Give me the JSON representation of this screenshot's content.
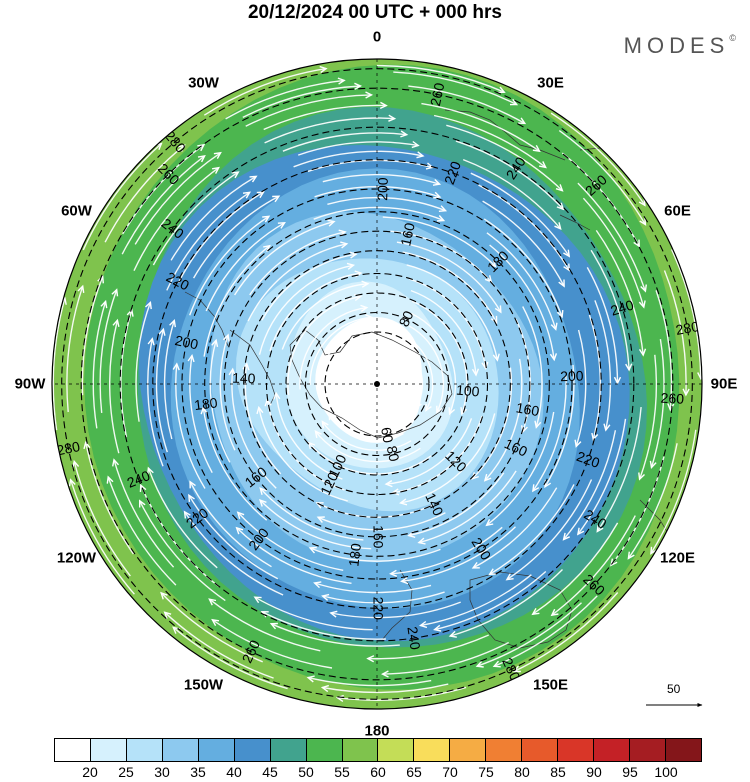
{
  "title": "20/12/2024  00 UTC  + 000 hrs",
  "logo": "MODES",
  "logo_mark": "©",
  "longitude_labels": [
    {
      "text": "0",
      "angle": 0
    },
    {
      "text": "30E",
      "angle": 30
    },
    {
      "text": "60E",
      "angle": 60
    },
    {
      "text": "90E",
      "angle": 90
    },
    {
      "text": "120E",
      "angle": 120
    },
    {
      "text": "150E",
      "angle": 150
    },
    {
      "text": "180",
      "angle": 180
    },
    {
      "text": "150W",
      "angle": 210
    },
    {
      "text": "120W",
      "angle": 240
    },
    {
      "text": "90W",
      "angle": 270
    },
    {
      "text": "60W",
      "angle": 300
    },
    {
      "text": "30W",
      "angle": 330
    }
  ],
  "contours": [
    {
      "value": "60",
      "r": 0.16,
      "label_angle": 170
    },
    {
      "value": "80",
      "r": 0.22,
      "label_angle": 25
    },
    {
      "value": "80",
      "r": 0.22,
      "label_angle": 168
    },
    {
      "value": "100",
      "r": 0.28,
      "label_angle": 95
    },
    {
      "value": "100",
      "r": 0.28,
      "label_angle": 205
    },
    {
      "value": "120",
      "r": 0.34,
      "label_angle": 135
    },
    {
      "value": "120",
      "r": 0.34,
      "label_angle": 205
    },
    {
      "value": "140",
      "r": 0.41,
      "label_angle": 155
    },
    {
      "value": "140",
      "r": 0.41,
      "label_angle": 272
    },
    {
      "value": "160",
      "r": 0.47,
      "label_angle": 12
    },
    {
      "value": "160",
      "r": 0.47,
      "label_angle": 100
    },
    {
      "value": "160",
      "r": 0.47,
      "label_angle": 115
    },
    {
      "value": "160",
      "r": 0.47,
      "label_angle": 180
    },
    {
      "value": "160",
      "r": 0.47,
      "label_angle": 232
    },
    {
      "value": "180",
      "r": 0.53,
      "label_angle": 45
    },
    {
      "value": "180",
      "r": 0.53,
      "label_angle": 187
    },
    {
      "value": "180",
      "r": 0.53,
      "label_angle": 263
    },
    {
      "value": "200",
      "r": 0.6,
      "label_angle": 2
    },
    {
      "value": "200",
      "r": 0.6,
      "label_angle": 88
    },
    {
      "value": "200",
      "r": 0.6,
      "label_angle": 148
    },
    {
      "value": "200",
      "r": 0.6,
      "label_angle": 217
    },
    {
      "value": "200",
      "r": 0.6,
      "label_angle": 282
    },
    {
      "value": "220",
      "r": 0.69,
      "label_angle": 20
    },
    {
      "value": "220",
      "r": 0.69,
      "label_angle": 110
    },
    {
      "value": "220",
      "r": 0.69,
      "label_angle": 180
    },
    {
      "value": "220",
      "r": 0.69,
      "label_angle": 233
    },
    {
      "value": "220",
      "r": 0.69,
      "label_angle": 297
    },
    {
      "value": "240",
      "r": 0.79,
      "label_angle": 33
    },
    {
      "value": "240",
      "r": 0.79,
      "label_angle": 73
    },
    {
      "value": "240",
      "r": 0.79,
      "label_angle": 122
    },
    {
      "value": "240",
      "r": 0.79,
      "label_angle": 172
    },
    {
      "value": "240",
      "r": 0.79,
      "label_angle": 248
    },
    {
      "value": "240",
      "r": 0.79,
      "label_angle": 307
    },
    {
      "value": "260",
      "r": 0.91,
      "label_angle": 12
    },
    {
      "value": "260",
      "r": 0.91,
      "label_angle": 48
    },
    {
      "value": "260",
      "r": 0.91,
      "label_angle": 93
    },
    {
      "value": "260",
      "r": 0.91,
      "label_angle": 133
    },
    {
      "value": "260",
      "r": 0.91,
      "label_angle": 205
    },
    {
      "value": "260",
      "r": 0.91,
      "label_angle": 315
    },
    {
      "value": "280",
      "r": 0.97,
      "label_angle": 80
    },
    {
      "value": "280",
      "r": 0.97,
      "label_angle": 155
    },
    {
      "value": "280",
      "r": 0.97,
      "label_angle": 258
    },
    {
      "value": "280",
      "r": 0.97,
      "label_angle": 320
    }
  ],
  "wind_scale_label": "50",
  "colorbar": {
    "colors": [
      "#ffffff",
      "#d6f1fd",
      "#b5e2f9",
      "#8dc9ef",
      "#64aee0",
      "#4790cc",
      "#41a38e",
      "#4cb64f",
      "#7fc34d",
      "#c4dd57",
      "#f9dd5b",
      "#f5ac44",
      "#f07f33",
      "#e75a2b",
      "#d93628",
      "#c42126",
      "#a51d22",
      "#84161a"
    ],
    "ticks": [
      "20",
      "25",
      "30",
      "35",
      "40",
      "45",
      "50",
      "55",
      "60",
      "65",
      "70",
      "75",
      "80",
      "85",
      "90",
      "95",
      "100"
    ]
  },
  "field_colors": {
    "c20": "#ffffff",
    "c25": "#d6f1fd",
    "c30": "#b5e2f9",
    "c35": "#8dc9ef",
    "c40": "#64aee0",
    "c45": "#4790cc",
    "c50": "#41a38e",
    "c55": "#4cb64f",
    "c60": "#7fc34d",
    "c65": "#c4dd57",
    "c70": "#f9dd5b",
    "c75": "#f5ac44"
  }
}
